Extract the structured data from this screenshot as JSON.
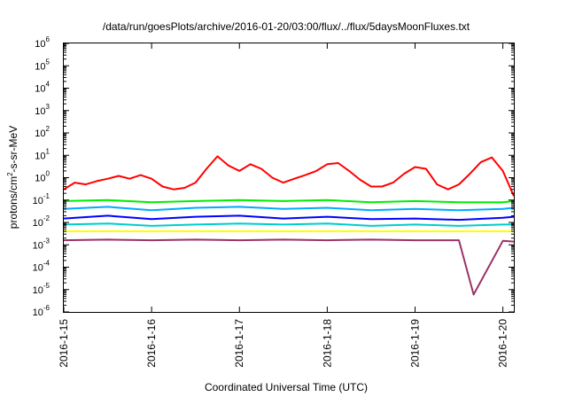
{
  "chart_data": {
    "type": "line",
    "title": "/data/run/goesPlots/archive/2016-01-20/03:00/flux/../flux/5daysMoonFluxes.txt",
    "xlabel": "Coordinated Universal Time (UTC)",
    "ylabel": {
      "pre": "protons/cm",
      "sup": "2",
      "post": "-s-sr-MeV"
    },
    "yscale": "log",
    "ylim": [
      1e-06,
      1000000.0
    ],
    "yticks": [
      {
        "base": "10",
        "exp": "-6"
      },
      {
        "base": "10",
        "exp": "-5"
      },
      {
        "base": "10",
        "exp": "-4"
      },
      {
        "base": "10",
        "exp": "-3"
      },
      {
        "base": "10",
        "exp": "-2"
      },
      {
        "base": "10",
        "exp": "-1"
      },
      {
        "base": "10",
        "exp": "0"
      },
      {
        "base": "10",
        "exp": "1"
      },
      {
        "base": "10",
        "exp": "2"
      },
      {
        "base": "10",
        "exp": "3"
      },
      {
        "base": "10",
        "exp": "4"
      },
      {
        "base": "10",
        "exp": "5"
      },
      {
        "base": "10",
        "exp": "6"
      }
    ],
    "xlim": [
      "2016-01-15 00:00",
      "2016-01-20 03:00"
    ],
    "xticks": [
      "2016-1-15",
      "2016-1-16",
      "2016-1-17",
      "2016-1-18",
      "2016-1-19",
      "2016-1-20"
    ],
    "grid": false,
    "legend": "none",
    "series": [
      {
        "color": "#ff0000",
        "x": [
          "2016-01-15 00:00",
          "2016-01-15 03:00",
          "2016-01-15 06:00",
          "2016-01-15 09:00",
          "2016-01-15 12:00",
          "2016-01-15 15:00",
          "2016-01-15 18:00",
          "2016-01-15 21:00",
          "2016-01-16 00:00",
          "2016-01-16 03:00",
          "2016-01-16 06:00",
          "2016-01-16 09:00",
          "2016-01-16 12:00",
          "2016-01-16 15:00",
          "2016-01-16 18:00",
          "2016-01-16 21:00",
          "2016-01-17 00:00",
          "2016-01-17 03:00",
          "2016-01-17 06:00",
          "2016-01-17 09:00",
          "2016-01-17 12:00",
          "2016-01-17 15:00",
          "2016-01-17 18:00",
          "2016-01-17 21:00",
          "2016-01-18 00:00",
          "2016-01-18 03:00",
          "2016-01-18 06:00",
          "2016-01-18 09:00",
          "2016-01-18 12:00",
          "2016-01-18 15:00",
          "2016-01-18 18:00",
          "2016-01-18 21:00",
          "2016-01-19 00:00",
          "2016-01-19 03:00",
          "2016-01-19 06:00",
          "2016-01-19 09:00",
          "2016-01-19 12:00",
          "2016-01-19 15:00",
          "2016-01-19 18:00",
          "2016-01-19 21:00",
          "2016-01-20 00:00",
          "2016-01-20 03:00"
        ],
        "values": [
          0.3,
          0.6,
          0.5,
          0.7,
          0.9,
          1.2,
          0.9,
          1.3,
          0.9,
          0.4,
          0.3,
          0.35,
          0.6,
          2.5,
          9.0,
          3.5,
          2.0,
          4.0,
          2.5,
          1.0,
          0.6,
          0.9,
          1.3,
          2.0,
          4.0,
          4.5,
          2.0,
          0.8,
          0.4,
          0.4,
          0.6,
          1.5,
          3.0,
          2.5,
          0.5,
          0.3,
          0.5,
          1.5,
          5.0,
          8.0,
          2.0,
          0.15
        ]
      },
      {
        "color": "#00ee00",
        "x": [
          "2016-01-15 00:00",
          "2016-01-15 12:00",
          "2016-01-16 00:00",
          "2016-01-16 12:00",
          "2016-01-17 00:00",
          "2016-01-17 12:00",
          "2016-01-18 00:00",
          "2016-01-18 12:00",
          "2016-01-19 00:00",
          "2016-01-19 12:00",
          "2016-01-20 00:00",
          "2016-01-20 03:00"
        ],
        "values": [
          0.09,
          0.1,
          0.08,
          0.09,
          0.1,
          0.09,
          0.1,
          0.08,
          0.09,
          0.08,
          0.08,
          0.09
        ]
      },
      {
        "color": "#00aaff",
        "x": [
          "2016-01-15 00:00",
          "2016-01-15 12:00",
          "2016-01-16 00:00",
          "2016-01-16 12:00",
          "2016-01-17 00:00",
          "2016-01-17 12:00",
          "2016-01-18 00:00",
          "2016-01-18 12:00",
          "2016-01-19 00:00",
          "2016-01-19 12:00",
          "2016-01-20 00:00",
          "2016-01-20 03:00"
        ],
        "values": [
          0.04,
          0.05,
          0.035,
          0.045,
          0.05,
          0.04,
          0.045,
          0.035,
          0.04,
          0.035,
          0.04,
          0.045
        ]
      },
      {
        "color": "#0000ff",
        "x": [
          "2016-01-15 00:00",
          "2016-01-15 12:00",
          "2016-01-16 00:00",
          "2016-01-16 12:00",
          "2016-01-17 00:00",
          "2016-01-17 12:00",
          "2016-01-18 00:00",
          "2016-01-18 12:00",
          "2016-01-19 00:00",
          "2016-01-19 12:00",
          "2016-01-20 00:00",
          "2016-01-20 03:00"
        ],
        "values": [
          0.015,
          0.02,
          0.014,
          0.018,
          0.02,
          0.015,
          0.018,
          0.014,
          0.015,
          0.013,
          0.016,
          0.018
        ]
      },
      {
        "color": "#00cccc",
        "x": [
          "2016-01-15 00:00",
          "2016-01-15 12:00",
          "2016-01-16 00:00",
          "2016-01-16 12:00",
          "2016-01-17 00:00",
          "2016-01-17 12:00",
          "2016-01-18 00:00",
          "2016-01-18 12:00",
          "2016-01-19 00:00",
          "2016-01-19 12:00",
          "2016-01-20 00:00",
          "2016-01-20 03:00"
        ],
        "values": [
          0.008,
          0.009,
          0.007,
          0.008,
          0.009,
          0.008,
          0.009,
          0.007,
          0.008,
          0.007,
          0.008,
          0.008
        ]
      },
      {
        "color": "#ffff00",
        "x": [
          "2016-01-15 00:00",
          "2016-01-15 12:00",
          "2016-01-16 00:00",
          "2016-01-16 12:00",
          "2016-01-17 00:00",
          "2016-01-17 12:00",
          "2016-01-18 00:00",
          "2016-01-18 12:00",
          "2016-01-19 00:00",
          "2016-01-19 12:00",
          "2016-01-20 00:00",
          "2016-01-20 03:00"
        ],
        "values": [
          0.004,
          0.004,
          0.004,
          0.004,
          0.004,
          0.004,
          0.004,
          0.004,
          0.004,
          0.004,
          0.004,
          0.004
        ]
      },
      {
        "color": "#993366",
        "x": [
          "2016-01-15 00:00",
          "2016-01-15 12:00",
          "2016-01-16 00:00",
          "2016-01-16 12:00",
          "2016-01-17 00:00",
          "2016-01-17 12:00",
          "2016-01-18 00:00",
          "2016-01-18 12:00",
          "2016-01-19 00:00",
          "2016-01-19 12:00",
          "2016-01-19 16:00",
          "2016-01-20 00:00",
          "2016-01-20 03:00"
        ],
        "values": [
          0.0016,
          0.0017,
          0.0016,
          0.0017,
          0.0016,
          0.0017,
          0.0016,
          0.0017,
          0.0016,
          0.0016,
          6e-06,
          0.0015,
          0.0014
        ]
      }
    ]
  }
}
